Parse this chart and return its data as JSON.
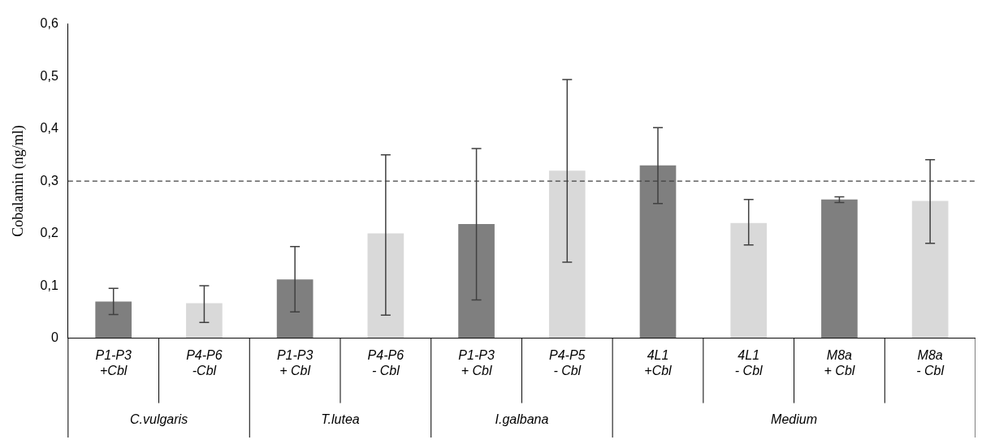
{
  "chart_data": {
    "type": "bar",
    "ylabel": "Cobalamin (ng/ml)",
    "categories": [
      "P1-P3 +Cbl",
      "P4-P6 -Cbl",
      "P1-P3 + Cbl",
      "P4-P6 - Cbl",
      "P1-P3 + Cbl",
      "P4-P5 - Cbl",
      "4L1 +Cbl",
      "4L1 - Cbl",
      "M8a + Cbl",
      "M8a - Cbl"
    ],
    "values": [
      0.07,
      0.067,
      0.112,
      0.2,
      0.218,
      0.32,
      0.33,
      0.22,
      0.265,
      0.262
    ],
    "colors": [
      "#7f7f7f",
      "#d9d9d9",
      "#7f7f7f",
      "#d9d9d9",
      "#7f7f7f",
      "#d9d9d9",
      "#7f7f7f",
      "#d9d9d9",
      "#7f7f7f",
      "#d9d9d9"
    ],
    "errors": [
      [
        0.045,
        0.095
      ],
      [
        0.03,
        0.1
      ],
      [
        0.05,
        0.175
      ],
      [
        0.044,
        0.35
      ],
      [
        0.073,
        0.362
      ],
      [
        0.145,
        0.494
      ],
      [
        0.257,
        0.402
      ],
      [
        0.178,
        0.265
      ],
      [
        0.259,
        0.27
      ],
      [
        0.181,
        0.341
      ]
    ],
    "ylim": [
      0,
      0.6
    ],
    "yticks": [
      0,
      {
        "value": 0.1,
        "label": "0,1"
      },
      {
        "value": 0.2,
        "label": "0,2"
      },
      {
        "value": 0.3,
        "label": "0,3"
      },
      {
        "value": 0.4,
        "label": "0,4"
      },
      {
        "value": 0.5,
        "label": "0,5"
      },
      {
        "value": 0.6,
        "label": "0,6"
      }
    ],
    "ref_lines": [
      {
        "axis": "y",
        "value": 0.3,
        "color": "#404040",
        "line_style": "dashed"
      }
    ],
    "annotations": [
      "C.vulgaris",
      "T.lutea",
      "I.galbana",
      "Medium"
    ],
    "grid": false,
    "legend": false
  }
}
